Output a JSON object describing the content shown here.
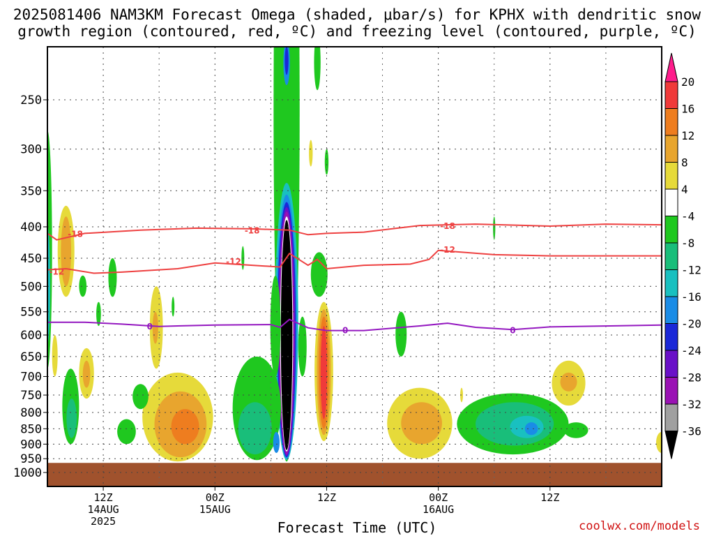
{
  "header": {
    "title_line1": "2025081406 NAM3KM Forecast Omega (shaded, μbar/s) for KPHX with dendritic snow",
    "title_line2": "growth region (contoured, red, ºC) and freezing level (contoured, purple, ºC)"
  },
  "footer": {
    "xlabel": "Forecast Time (UTC)",
    "credit": "coolwx.com/models"
  },
  "chart_data": {
    "type": "heatmap",
    "title": "2025081406 NAM3KM Forecast Omega (shaded, μbar/s) for KPHX with dendritic snow growth region (contoured, red, ºC) and freezing level (contoured, purple, ºC)",
    "xlabel": "Forecast Time (UTC)",
    "ylabel": "",
    "y_axis": {
      "scale": "pressure (log-like), inverted",
      "range": [
        1040,
        200
      ],
      "ticks": [
        250,
        300,
        350,
        400,
        450,
        500,
        550,
        600,
        650,
        700,
        750,
        800,
        850,
        900,
        950,
        1000
      ]
    },
    "x_axis": {
      "range": [
        "2025-08-14 06Z",
        "2025-08-17 00Z"
      ],
      "ticks": [
        {
          "label": "12Z",
          "sub": "14AUG",
          "sub2": "2025",
          "time": "2025-08-14 12Z"
        },
        {
          "label": "00Z",
          "sub": "15AUG",
          "sub2": "",
          "time": "2025-08-15 00Z"
        },
        {
          "label": "12Z",
          "sub": "",
          "sub2": "",
          "time": "2025-08-15 12Z"
        },
        {
          "label": "00Z",
          "sub": "16AUG",
          "sub2": "",
          "time": "2025-08-16 00Z"
        },
        {
          "label": "12Z",
          "sub": "",
          "sub2": "",
          "time": "2025-08-16 12Z"
        }
      ]
    },
    "grid": true,
    "colorbar": {
      "ticks": [
        "20",
        "16",
        "12",
        "8",
        "4",
        "-4",
        "-8",
        "-12",
        "-16",
        "-20",
        "-24",
        "-28",
        "-32",
        "-36"
      ],
      "colors": [
        "#ff1c8c",
        "#f03a3a",
        "#ee7d1f",
        "#e8a52e",
        "#e6da3a",
        "#ffffff",
        "#1fc81f",
        "#19be7a",
        "#19c0c0",
        "#1a8ce6",
        "#1a28d8",
        "#6a10c8",
        "#9a12b4",
        "#a0a0a0",
        "#000000"
      ]
    },
    "contours": [
      {
        "level": "-18",
        "color": "#ee4040",
        "labels": [
          [
            "2025-08-14 09Z",
            410
          ],
          [
            "2025-08-15 04Z",
            405
          ],
          [
            "2025-08-16 01Z",
            398
          ]
        ],
        "points": [
          [
            "2025-08-14 06Z",
            410
          ],
          [
            "2025-08-14 07Z",
            420
          ],
          [
            "2025-08-14 10Z",
            410
          ],
          [
            "2025-08-14 16Z",
            405
          ],
          [
            "2025-08-14 22Z",
            402
          ],
          [
            "2025-08-15 04Z",
            403
          ],
          [
            "2025-08-15 08Z",
            405
          ],
          [
            "2025-08-15 10Z",
            412
          ],
          [
            "2025-08-15 12Z",
            410
          ],
          [
            "2025-08-15 16Z",
            408
          ],
          [
            "2025-08-15 22Z",
            398
          ],
          [
            "2025-08-16 04Z",
            396
          ],
          [
            "2025-08-16 12Z",
            399
          ],
          [
            "2025-08-16 18Z",
            396
          ],
          [
            "2025-08-17 00Z",
            397
          ]
        ]
      },
      {
        "level": "-12",
        "color": "#ee4040",
        "labels": [
          [
            "2025-08-14 07Z",
            472
          ],
          [
            "2025-08-15 02Z",
            455
          ],
          [
            "2025-08-16 01Z",
            435
          ]
        ],
        "points": [
          [
            "2025-08-14 06Z",
            470
          ],
          [
            "2025-08-14 08Z",
            468
          ],
          [
            "2025-08-14 11Z",
            476
          ],
          [
            "2025-08-14 14Z",
            474
          ],
          [
            "2025-08-14 20Z",
            468
          ],
          [
            "2025-08-15 00Z",
            458
          ],
          [
            "2025-08-15 04Z",
            462
          ],
          [
            "2025-08-15 07Z",
            465
          ],
          [
            "2025-08-15 08Z",
            442
          ],
          [
            "2025-08-15 10Z",
            462
          ],
          [
            "2025-08-15 11Z",
            452
          ],
          [
            "2025-08-15 12Z",
            468
          ],
          [
            "2025-08-15 16Z",
            462
          ],
          [
            "2025-08-15 21Z",
            460
          ],
          [
            "2025-08-15 23Z",
            452
          ],
          [
            "2025-08-16 00Z",
            437
          ],
          [
            "2025-08-16 06Z",
            444
          ],
          [
            "2025-08-16 12Z",
            446
          ],
          [
            "2025-08-17 00Z",
            446
          ]
        ]
      },
      {
        "level": "0",
        "color": "#9418c0",
        "labels": [
          [
            "2025-08-14 17Z",
            580
          ],
          [
            "2025-08-15 14Z",
            588
          ],
          [
            "2025-08-16 08Z",
            588
          ]
        ],
        "points": [
          [
            "2025-08-14 06Z",
            572
          ],
          [
            "2025-08-14 10Z",
            572
          ],
          [
            "2025-08-14 14Z",
            576
          ],
          [
            "2025-08-14 18Z",
            581
          ],
          [
            "2025-08-15 00Z",
            578
          ],
          [
            "2025-08-15 06Z",
            577
          ],
          [
            "2025-08-15 07Z",
            583
          ],
          [
            "2025-08-15 08Z",
            566
          ],
          [
            "2025-08-15 10Z",
            584
          ],
          [
            "2025-08-15 12Z",
            590
          ],
          [
            "2025-08-15 16Z",
            590
          ],
          [
            "2025-08-15 22Z",
            580
          ],
          [
            "2025-08-16 01Z",
            574
          ],
          [
            "2025-08-16 04Z",
            583
          ],
          [
            "2025-08-16 08Z",
            588
          ],
          [
            "2025-08-16 12Z",
            582
          ],
          [
            "2025-08-17 00Z",
            578
          ]
        ]
      }
    ],
    "omega_features": [
      {
        "t": "2025-08-15 07.7Z",
        "p_top": 380,
        "p_bottom": 950,
        "min": "-36",
        "note": "strong ascent column"
      },
      {
        "t": "2025-08-15 11.7Z",
        "p_top": 540,
        "p_bottom": 860,
        "max": "16",
        "note": "descent column"
      },
      {
        "t": "2025-08-14 19.5Z",
        "p_top": 780,
        "p_bottom": 940,
        "max": "12",
        "note": "low-level descent"
      },
      {
        "t": "2025-08-15 05Z",
        "p_top": 650,
        "p_bottom": 950,
        "min": "-12",
        "note": "low-level ascent"
      },
      {
        "t": "2025-08-16 08Z",
        "p_top": 760,
        "p_bottom": 920,
        "min": "-16",
        "note": "low-level ascent"
      },
      {
        "t": "2025-08-15 22Z",
        "p_top": 760,
        "p_bottom": 940,
        "max": "12",
        "note": "low-level descent"
      }
    ],
    "ground_pressure": 965
  }
}
